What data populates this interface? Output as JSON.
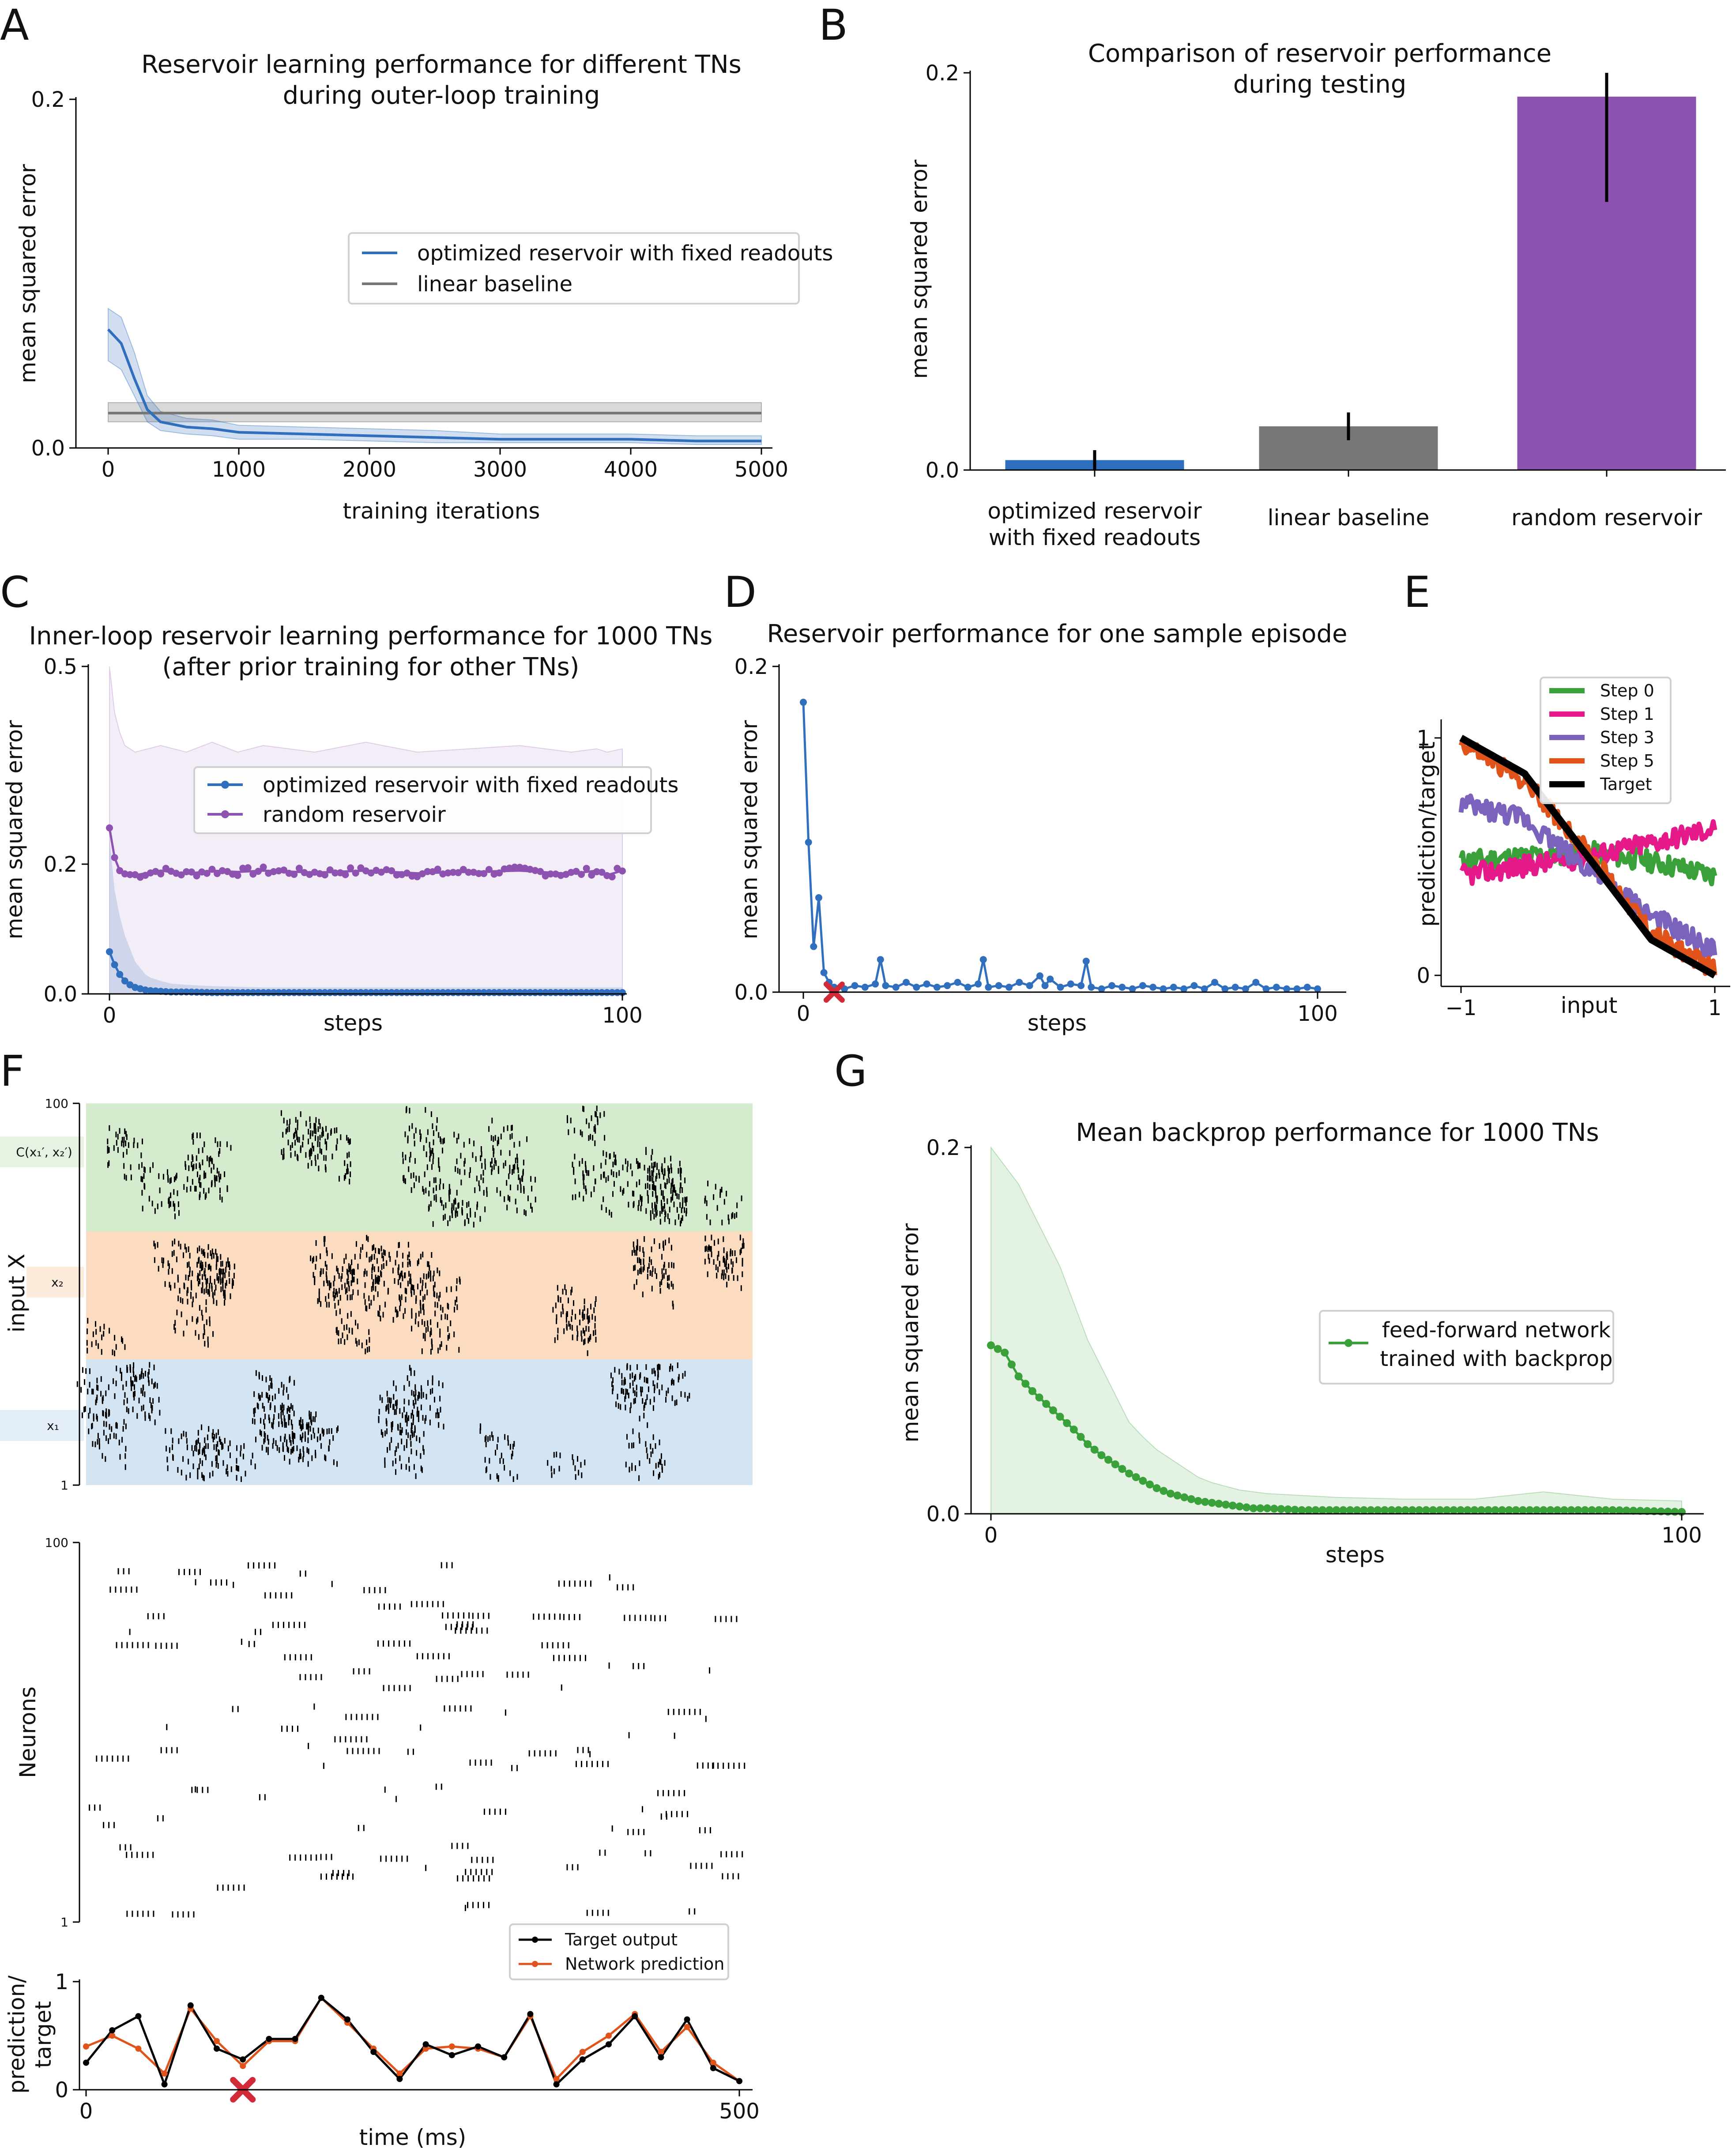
{
  "colors": {
    "blue": "#2f6fbd",
    "gray": "#777777",
    "purple": "#8e52b0",
    "green": "#3aa03a",
    "magenta": "#e5198a",
    "violet": "#7a62bd",
    "orange": "#e0541c",
    "black": "#000000",
    "red_marker": "#d12b3a",
    "band_green": "#d4ebce",
    "band_orange": "#fbdcc0",
    "band_blue": "#d3e4f3"
  },
  "panels": {
    "A": {
      "letter": "A",
      "title_line1": "Reservoir learning performance for different TNs",
      "title_line2": "during outer-loop training",
      "xlabel": "training iterations",
      "ylabel": "mean squared error",
      "xticks": [
        "0",
        "1000",
        "2000",
        "3000",
        "4000",
        "5000"
      ],
      "yticks": [
        "0.0",
        "0.2"
      ],
      "legend": [
        "optimized reservoir with fixed readouts",
        "linear baseline"
      ]
    },
    "B": {
      "letter": "B",
      "title_line1": "Comparison of reservoir performance",
      "title_line2": "during testing",
      "ylabel": "mean squared error",
      "yticks": [
        "0.0",
        "0.2"
      ],
      "cat1_line1": "optimized reservoir",
      "cat1_line2": "with fixed readouts",
      "cat2": "linear baseline",
      "cat3": "random reservoir"
    },
    "C": {
      "letter": "C",
      "title_line1": "Inner-loop reservoir learning performance for 1000 TNs",
      "title_line2": "(after prior training for other TNs)",
      "xlabel": "steps",
      "ylabel": "mean squared error",
      "xticks": [
        "0",
        "100"
      ],
      "yticks": [
        "0.0",
        "0.2",
        "0.5"
      ],
      "legend": [
        "optimized reservoir with fixed readouts",
        "random reservoir"
      ]
    },
    "D": {
      "letter": "D",
      "title": "Reservoir performance for one sample episode",
      "xlabel": "steps",
      "ylabel": "mean squared error",
      "xticks": [
        "0",
        "100"
      ],
      "yticks": [
        "0.0",
        "0.2"
      ]
    },
    "E": {
      "letter": "E",
      "xlabel": "input",
      "ylabel": "prediction/target",
      "xticks": [
        "−1",
        "1"
      ],
      "yticks": [
        "0",
        "1"
      ],
      "legend": [
        "Step 0",
        "Step 1",
        "Step 3",
        "Step 5",
        "Target"
      ]
    },
    "F": {
      "letter": "F",
      "input_ylabel": "input X",
      "input_yticks": [
        "1",
        "100"
      ],
      "band_labels": [
        "C(x₁′, x₂′)",
        "x₂",
        "x₁"
      ],
      "neurons_ylabel": "Neurons",
      "neurons_yticks": [
        "1",
        "100"
      ],
      "pred_ylabel_line1": "prediction/",
      "pred_ylabel_line2": "target",
      "pred_yticks": [
        "0",
        "1"
      ],
      "xticks": [
        "0",
        "500"
      ],
      "xlabel": "time (ms)",
      "legend": [
        "Target output",
        "Network prediction"
      ]
    },
    "G": {
      "letter": "G",
      "title": "Mean backprop performance for 1000 TNs",
      "xlabel": "steps",
      "ylabel": "mean squared error",
      "xticks": [
        "0",
        "100"
      ],
      "yticks": [
        "0.0",
        "0.2"
      ],
      "legend_line1": "feed-forward network",
      "legend_line2": "trained with backprop"
    }
  },
  "chart_data": [
    {
      "panel": "A",
      "type": "line",
      "title": "Reservoir learning performance for different TNs during outer-loop training",
      "xlabel": "training iterations",
      "ylabel": "mean squared error",
      "xlim": [
        0,
        5000
      ],
      "ylim": [
        0,
        0.2
      ],
      "series": [
        {
          "name": "optimized reservoir with fixed readouts",
          "x": [
            0,
            100,
            200,
            300,
            400,
            600,
            800,
            1000,
            1500,
            2000,
            2500,
            3000,
            3500,
            4000,
            4500,
            5000
          ],
          "y": [
            0.068,
            0.06,
            0.04,
            0.022,
            0.015,
            0.012,
            0.011,
            0.009,
            0.008,
            0.007,
            0.006,
            0.005,
            0.005,
            0.005,
            0.004,
            0.004
          ],
          "band_low": [
            0.05,
            0.045,
            0.03,
            0.015,
            0.01,
            0.008,
            0.007,
            0.005,
            0.005,
            0.004,
            0.003,
            0.003,
            0.003,
            0.003,
            0.002,
            0.002
          ],
          "band_high": [
            0.08,
            0.075,
            0.055,
            0.03,
            0.021,
            0.017,
            0.016,
            0.013,
            0.012,
            0.011,
            0.01,
            0.008,
            0.008,
            0.008,
            0.007,
            0.007
          ]
        },
        {
          "name": "linear baseline",
          "x": [
            0,
            5000
          ],
          "y": [
            0.02,
            0.02
          ],
          "band_low": [
            0.015,
            0.015
          ],
          "band_high": [
            0.026,
            0.026
          ]
        }
      ]
    },
    {
      "panel": "B",
      "type": "bar",
      "title": "Comparison of reservoir performance during testing",
      "ylabel": "mean squared error",
      "categories": [
        "optimized reservoir with fixed readouts",
        "linear baseline",
        "random reservoir"
      ],
      "values": [
        0.005,
        0.022,
        0.188
      ],
      "err_low": [
        0.0,
        0.015,
        0.135
      ],
      "err_high": [
        0.01,
        0.029,
        0.2
      ],
      "ylim": [
        0,
        0.2
      ]
    },
    {
      "panel": "C",
      "type": "line",
      "title": "Inner-loop reservoir learning performance for 1000 TNs (after prior training for other TNs)",
      "xlabel": "steps",
      "ylabel": "mean squared error",
      "xlim": [
        0,
        100
      ],
      "ytick_values": [
        0.0,
        0.2,
        0.5
      ],
      "series": [
        {
          "name": "optimized reservoir with fixed readouts",
          "x": [
            0,
            1,
            2,
            3,
            4,
            5,
            6,
            7,
            8,
            10,
            12,
            15,
            20,
            30,
            50,
            70,
            100
          ],
          "y": [
            0.065,
            0.045,
            0.03,
            0.02,
            0.014,
            0.01,
            0.008,
            0.006,
            0.005,
            0.004,
            0.003,
            0.003,
            0.002,
            0.002,
            0.002,
            0.002,
            0.002
          ],
          "band_low": [
            0,
            0,
            0,
            0,
            0,
            0,
            0,
            0,
            0,
            0,
            0,
            0,
            0,
            0,
            0,
            0,
            0
          ],
          "band_high": [
            0.24,
            0.16,
            0.12,
            0.09,
            0.07,
            0.05,
            0.04,
            0.03,
            0.025,
            0.02,
            0.016,
            0.014,
            0.012,
            0.01,
            0.01,
            0.01,
            0.01
          ]
        },
        {
          "name": "random reservoir",
          "x": [
            0,
            1,
            2,
            3,
            5,
            10,
            15,
            20,
            25,
            30,
            40,
            50,
            60,
            70,
            80,
            90,
            95,
            97,
            100
          ],
          "y": [
            0.255,
            0.21,
            0.19,
            0.185,
            0.183,
            0.19,
            0.185,
            0.19,
            0.188,
            0.19,
            0.187,
            0.19,
            0.186,
            0.188,
            0.19,
            0.185,
            0.19,
            0.183,
            0.19
          ],
          "band_low": [
            0.0,
            0.0,
            0.0,
            0.0,
            0.0,
            0.0,
            0.0,
            0.0,
            0.0,
            0.0,
            0.0,
            0.0,
            0.0,
            0.0,
            0.0,
            0.0,
            0.0,
            0.0,
            0.0
          ],
          "band_high": [
            0.5,
            0.43,
            0.4,
            0.38,
            0.37,
            0.38,
            0.37,
            0.385,
            0.37,
            0.38,
            0.37,
            0.385,
            0.37,
            0.375,
            0.38,
            0.37,
            0.375,
            0.37,
            0.375
          ]
        }
      ]
    },
    {
      "panel": "D",
      "type": "line",
      "title": "Reservoir performance for one sample episode",
      "xlabel": "steps",
      "ylabel": "mean squared error",
      "xlim": [
        0,
        100
      ],
      "ylim": [
        0,
        0.2
      ],
      "marker_x": 6,
      "series": [
        {
          "x": [
            0,
            1,
            2,
            3,
            4,
            5,
            6,
            8,
            10,
            12,
            14,
            15,
            16,
            18,
            20,
            22,
            24,
            26,
            28,
            30,
            32,
            34,
            35,
            36,
            38,
            40,
            42,
            44,
            46,
            47,
            48,
            50,
            52,
            54,
            55,
            56,
            58,
            60,
            62,
            64,
            66,
            68,
            70,
            72,
            74,
            76,
            78,
            80,
            82,
            84,
            86,
            88,
            90,
            92,
            94,
            96,
            98,
            100
          ],
          "y": [
            0.178,
            0.092,
            0.028,
            0.058,
            0.012,
            0.006,
            0.003,
            0.002,
            0.004,
            0.003,
            0.005,
            0.02,
            0.004,
            0.003,
            0.006,
            0.003,
            0.005,
            0.003,
            0.004,
            0.006,
            0.003,
            0.005,
            0.02,
            0.003,
            0.004,
            0.003,
            0.006,
            0.004,
            0.01,
            0.004,
            0.008,
            0.003,
            0.005,
            0.004,
            0.019,
            0.003,
            0.002,
            0.004,
            0.003,
            0.002,
            0.004,
            0.003,
            0.002,
            0.003,
            0.002,
            0.004,
            0.002,
            0.006,
            0.002,
            0.003,
            0.002,
            0.006,
            0.002,
            0.003,
            0.002,
            0.002,
            0.003,
            0.002
          ]
        }
      ]
    },
    {
      "panel": "E",
      "type": "line",
      "xlabel": "input",
      "ylabel": "prediction/target",
      "xlim": [
        -1,
        1
      ],
      "ylim": [
        0,
        1
      ],
      "series": [
        {
          "name": "Step 0",
          "x": [
            -1,
            -0.5,
            0,
            0.5,
            1
          ],
          "y": [
            0.48,
            0.5,
            0.52,
            0.48,
            0.42
          ]
        },
        {
          "name": "Step 1",
          "x": [
            -1,
            -0.5,
            0,
            0.5,
            1
          ],
          "y": [
            0.42,
            0.46,
            0.5,
            0.56,
            0.62
          ]
        },
        {
          "name": "Step 3",
          "x": [
            -1,
            -0.5,
            0,
            0.5,
            1
          ],
          "y": [
            0.72,
            0.66,
            0.45,
            0.25,
            0.1
          ]
        },
        {
          "name": "Step 5",
          "x": [
            -1,
            -0.5,
            0,
            0.5,
            1
          ],
          "y": [
            0.98,
            0.82,
            0.52,
            0.18,
            0.02
          ]
        },
        {
          "name": "Target",
          "x": [
            -1,
            -0.5,
            0,
            0.5,
            1
          ],
          "y": [
            1.0,
            0.85,
            0.5,
            0.15,
            0.0
          ]
        }
      ]
    },
    {
      "panel": "F",
      "type": "line",
      "xlabel": "time (ms)",
      "ylabel": "prediction/target",
      "xlim": [
        0,
        500
      ],
      "ylim": [
        0,
        1
      ],
      "marker_x": 120,
      "series": [
        {
          "name": "Target output",
          "x": [
            0,
            20,
            40,
            60,
            80,
            100,
            120,
            140,
            160,
            180,
            200,
            220,
            240,
            260,
            280,
            300,
            320,
            340,
            360,
            380,
            400,
            420,
            440,
            460,
            480,
            500
          ],
          "y": [
            0.25,
            0.55,
            0.68,
            0.05,
            0.78,
            0.38,
            0.28,
            0.47,
            0.47,
            0.85,
            0.65,
            0.35,
            0.1,
            0.42,
            0.32,
            0.4,
            0.3,
            0.7,
            0.05,
            0.28,
            0.42,
            0.68,
            0.3,
            0.65,
            0.2,
            0.08
          ]
        },
        {
          "name": "Network prediction",
          "x": [
            0,
            20,
            40,
            60,
            80,
            100,
            120,
            140,
            160,
            180,
            200,
            220,
            240,
            260,
            280,
            300,
            320,
            340,
            360,
            380,
            400,
            420,
            440,
            460,
            480,
            500
          ],
          "y": [
            0.4,
            0.5,
            0.38,
            0.15,
            0.75,
            0.45,
            0.22,
            0.45,
            0.45,
            0.85,
            0.62,
            0.38,
            0.15,
            0.38,
            0.4,
            0.38,
            0.3,
            0.68,
            0.1,
            0.35,
            0.5,
            0.7,
            0.35,
            0.58,
            0.25,
            0.08
          ]
        }
      ]
    },
    {
      "panel": "G",
      "type": "line",
      "title": "Mean backprop performance for 1000 TNs",
      "xlabel": "steps",
      "ylabel": "mean squared error",
      "xlim": [
        0,
        100
      ],
      "ylim": [
        0,
        0.2
      ],
      "series": [
        {
          "name": "feed-forward network trained with backprop",
          "x": [
            0,
            2,
            4,
            6,
            8,
            10,
            12,
            14,
            16,
            18,
            20,
            22,
            24,
            26,
            28,
            30,
            32,
            34,
            36,
            38,
            40,
            45,
            50,
            60,
            70,
            80,
            90,
            100
          ],
          "y": [
            0.092,
            0.088,
            0.075,
            0.067,
            0.06,
            0.053,
            0.046,
            0.038,
            0.032,
            0.027,
            0.022,
            0.018,
            0.014,
            0.011,
            0.009,
            0.007,
            0.006,
            0.005,
            0.004,
            0.003,
            0.003,
            0.002,
            0.002,
            0.002,
            0.002,
            0.002,
            0.002,
            0.001
          ],
          "band_high": [
            0.2,
            0.19,
            0.18,
            0.165,
            0.15,
            0.135,
            0.115,
            0.095,
            0.08,
            0.065,
            0.05,
            0.042,
            0.035,
            0.03,
            0.025,
            0.02,
            0.017,
            0.015,
            0.013,
            0.012,
            0.011,
            0.01,
            0.009,
            0.008,
            0.008,
            0.012,
            0.008,
            0.007
          ]
        }
      ]
    }
  ]
}
